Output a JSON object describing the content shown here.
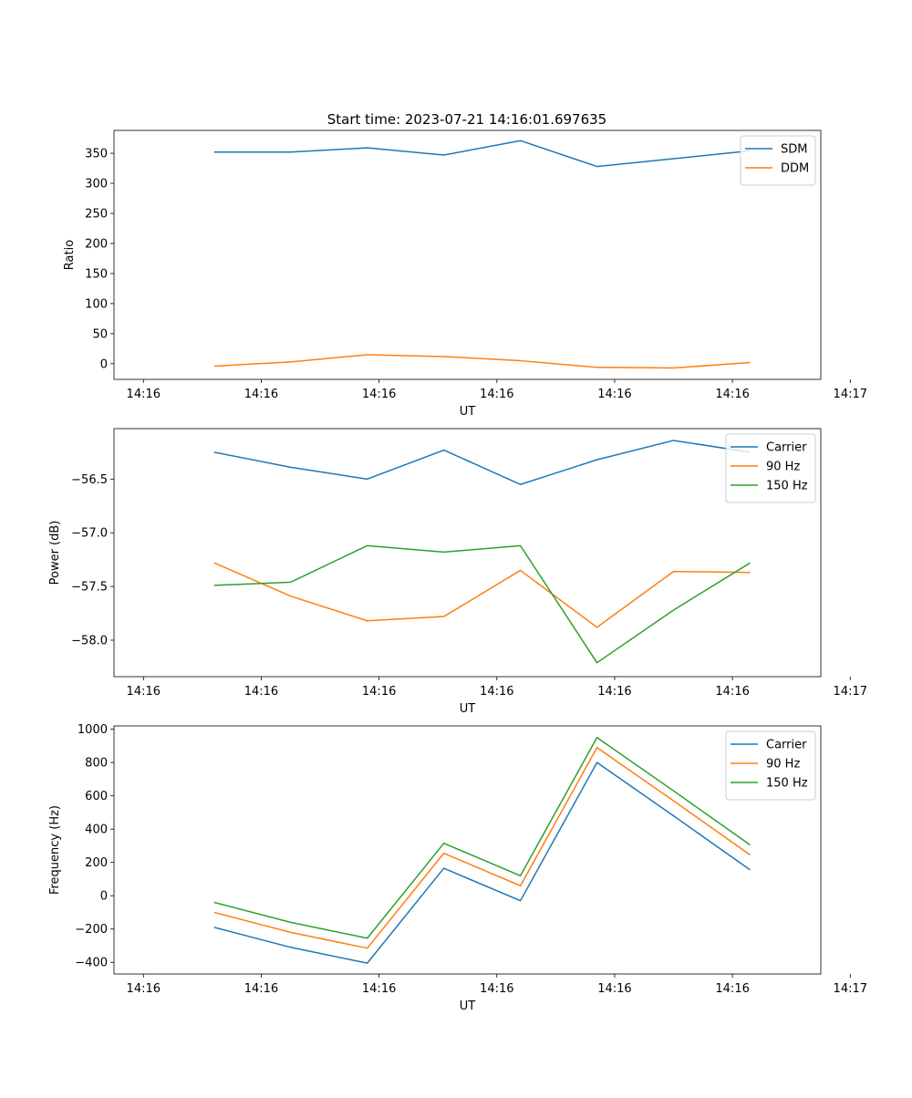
{
  "title": "Start time: 2023-07-21 14:16:01.697635",
  "colors": {
    "blue": "#1f77b4",
    "orange": "#ff7f0e",
    "green": "#2ca02c",
    "axis": "#000000",
    "legend_border": "#cccccc"
  },
  "chart_data": [
    {
      "type": "line",
      "xlabel": "UT",
      "ylabel": "Ratio",
      "xlim": [
        0,
        12
      ],
      "ylim": [
        -26,
        388
      ],
      "yticks": [
        0,
        50,
        100,
        150,
        200,
        250,
        300,
        350
      ],
      "ytick_labels": [
        "0",
        "50",
        "100",
        "150",
        "200",
        "250",
        "300",
        "350"
      ],
      "xticks": [
        0.5,
        2.5,
        4.5,
        6.5,
        8.5,
        10.5,
        12.5
      ],
      "xtick_labels": [
        "14:16",
        "14:16",
        "14:16",
        "14:16",
        "14:16",
        "14:16",
        "14:17"
      ],
      "x": [
        1.7,
        3.0,
        4.3,
        5.6,
        6.9,
        8.2,
        9.5,
        10.8
      ],
      "legend": "top-right",
      "series": [
        {
          "name": "SDM",
          "color": "#1f77b4",
          "values": [
            352,
            352,
            359,
            347,
            371,
            328,
            341,
            354
          ]
        },
        {
          "name": "DDM",
          "color": "#ff7f0e",
          "values": [
            -4,
            3,
            15,
            12,
            5,
            -6,
            -7,
            2
          ]
        }
      ]
    },
    {
      "type": "line",
      "xlabel": "UT",
      "ylabel": "Power (dB)",
      "xlim": [
        0,
        12
      ],
      "ylim": [
        -58.34,
        -56.03
      ],
      "yticks": [
        -58.0,
        -57.5,
        -57.0,
        -56.5
      ],
      "ytick_labels": [
        "−58.0",
        "−57.5",
        "−57.0",
        "−56.5"
      ],
      "xticks": [
        0.5,
        2.5,
        4.5,
        6.5,
        8.5,
        10.5,
        12.5
      ],
      "xtick_labels": [
        "14:16",
        "14:16",
        "14:16",
        "14:16",
        "14:16",
        "14:16",
        "14:17"
      ],
      "x": [
        1.7,
        3.0,
        4.3,
        5.6,
        6.9,
        8.2,
        9.5,
        10.8
      ],
      "legend": "top-right",
      "series": [
        {
          "name": "Carrier",
          "color": "#1f77b4",
          "values": [
            -56.25,
            -56.39,
            -56.5,
            -56.23,
            -56.55,
            -56.32,
            -56.14,
            -56.25
          ]
        },
        {
          "name": "90 Hz",
          "color": "#ff7f0e",
          "values": [
            -57.28,
            -57.59,
            -57.82,
            -57.78,
            -57.35,
            -57.88,
            -57.36,
            -57.37
          ]
        },
        {
          "name": "150 Hz",
          "color": "#2ca02c",
          "values": [
            -57.49,
            -57.46,
            -57.12,
            -57.18,
            -57.12,
            -58.21,
            -57.72,
            -57.28
          ]
        }
      ]
    },
    {
      "type": "line",
      "xlabel": "UT",
      "ylabel": "Frequency (Hz)",
      "xlim": [
        0,
        12
      ],
      "ylim": [
        -470,
        1020
      ],
      "yticks": [
        -400,
        -200,
        0,
        200,
        400,
        600,
        800,
        1000
      ],
      "ytick_labels": [
        "−400",
        "−200",
        "0",
        "200",
        "400",
        "600",
        "800",
        "1000"
      ],
      "xticks": [
        0.5,
        2.5,
        4.5,
        6.5,
        8.5,
        10.5,
        12.5
      ],
      "xtick_labels": [
        "14:16",
        "14:16",
        "14:16",
        "14:16",
        "14:16",
        "14:16",
        "14:17"
      ],
      "x": [
        1.7,
        3.0,
        4.3,
        5.6,
        6.9,
        8.2,
        9.5,
        10.8
      ],
      "legend": "top-right",
      "series": [
        {
          "name": "Carrier",
          "color": "#1f77b4",
          "values": [
            -190,
            -310,
            -405,
            165,
            -30,
            800,
            480,
            155
          ]
        },
        {
          "name": "90 Hz",
          "color": "#ff7f0e",
          "values": [
            -100,
            -220,
            -315,
            255,
            60,
            890,
            570,
            245
          ]
        },
        {
          "name": "150 Hz",
          "color": "#2ca02c",
          "values": [
            -40,
            -160,
            -255,
            315,
            120,
            950,
            630,
            305
          ]
        }
      ]
    }
  ]
}
